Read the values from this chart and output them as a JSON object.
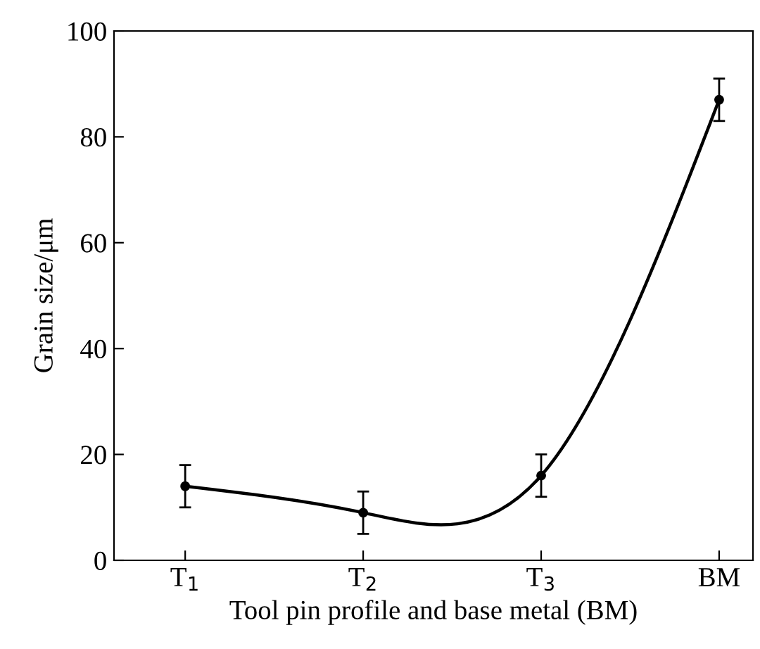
{
  "chart_data": {
    "type": "line",
    "xlabel": "Tool pin profile and base metal (BM)",
    "ylabel": "Grain size/μm",
    "categories": [
      "T$_{1}$",
      "T$_{2}$",
      "T$_{3}$",
      "BM"
    ],
    "series": [
      {
        "color": "#000000",
        "values": [
          14,
          9,
          16,
          87
        ],
        "errors": [
          4,
          4,
          4,
          4
        ]
      }
    ],
    "ylim": [
      0,
      100
    ],
    "yticks": [
      0,
      20,
      40,
      60,
      80,
      100
    ],
    "marker": "circle",
    "line_style": "solid",
    "grid": false
  }
}
